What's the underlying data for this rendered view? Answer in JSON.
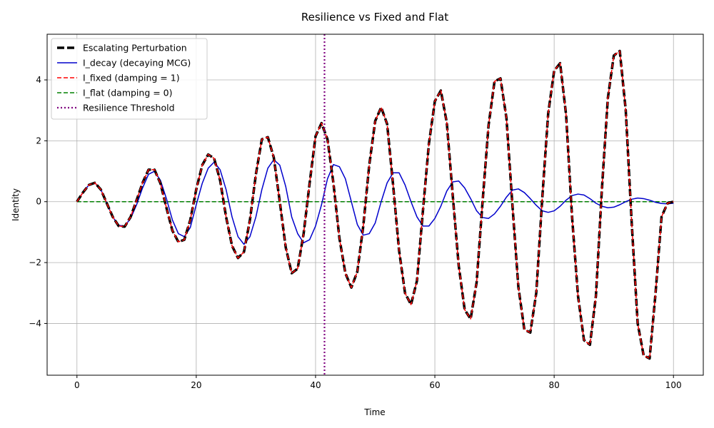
{
  "chart_data": {
    "type": "line",
    "title": "Resilience vs Fixed and Flat",
    "xlabel": "Time",
    "ylabel": "Identity",
    "xlim": [
      -5,
      105
    ],
    "ylim": [
      -5.7,
      5.5
    ],
    "xticks": [
      0,
      20,
      40,
      60,
      80,
      100
    ],
    "yticks": [
      -4,
      -2,
      0,
      2,
      4
    ],
    "grid": true,
    "legend_position": "top-left",
    "series": [
      {
        "name": "Escalating Perturbation",
        "color": "#000000",
        "style": "dashed",
        "x": [
          0,
          1,
          2,
          3,
          4,
          5,
          6,
          7,
          8,
          9,
          10,
          11,
          12,
          13,
          14,
          15,
          16,
          17,
          18,
          19,
          20,
          21,
          22,
          23,
          24,
          25,
          26,
          27,
          28,
          29,
          30,
          31,
          32,
          33,
          34,
          35,
          36,
          37,
          38,
          39,
          40,
          41,
          42,
          43,
          44,
          45,
          46,
          47,
          48,
          49,
          50,
          51,
          52,
          53,
          54,
          55,
          56,
          57,
          58,
          59,
          60,
          61,
          62,
          63,
          64,
          65,
          66,
          67,
          68,
          69,
          70,
          71,
          72,
          73,
          74,
          75,
          76,
          77,
          78,
          79,
          80,
          81,
          82,
          83,
          84,
          85,
          86,
          87,
          88,
          89,
          90,
          91,
          92,
          93,
          94,
          95,
          96,
          97,
          98,
          99,
          100
        ],
        "y": [
          0.0,
          0.3,
          0.55,
          0.62,
          0.4,
          -0.05,
          -0.5,
          -0.8,
          -0.82,
          -0.5,
          0.05,
          0.62,
          1.05,
          1.05,
          0.6,
          -0.2,
          -0.95,
          -1.32,
          -1.25,
          -0.6,
          0.4,
          1.2,
          1.55,
          1.42,
          0.7,
          -0.5,
          -1.45,
          -1.85,
          -1.65,
          -0.6,
          0.9,
          2.05,
          2.12,
          1.45,
          0.0,
          -1.5,
          -2.35,
          -2.2,
          -1.05,
          0.6,
          2.15,
          2.58,
          2.05,
          0.6,
          -1.2,
          -2.35,
          -2.82,
          -2.3,
          -0.8,
          1.2,
          2.65,
          3.1,
          2.55,
          0.55,
          -1.6,
          -3.0,
          -3.38,
          -2.6,
          -0.3,
          1.9,
          3.3,
          3.65,
          2.6,
          0.2,
          -2.1,
          -3.55,
          -3.85,
          -2.65,
          0.0,
          2.5,
          3.95,
          4.05,
          2.75,
          -0.1,
          -2.8,
          -4.2,
          -4.3,
          -3.0,
          0.1,
          2.9,
          4.3,
          4.55,
          2.85,
          -0.5,
          -3.1,
          -4.55,
          -4.7,
          -3.1,
          0.4,
          3.4,
          4.8,
          4.95,
          3.0,
          -0.7,
          -4.0,
          -5.05,
          -5.15,
          -3.0,
          -0.5,
          -0.05,
          0.0
        ]
      },
      {
        "name": "I_decay (decaying MCG)",
        "color": "#0000cc",
        "style": "solid",
        "x": [
          0,
          1,
          2,
          3,
          4,
          5,
          6,
          7,
          8,
          9,
          10,
          11,
          12,
          13,
          14,
          15,
          16,
          17,
          18,
          19,
          20,
          21,
          22,
          23,
          24,
          25,
          26,
          27,
          28,
          29,
          30,
          31,
          32,
          33,
          34,
          35,
          36,
          37,
          38,
          39,
          40,
          41,
          42,
          43,
          44,
          45,
          46,
          47,
          48,
          49,
          50,
          51,
          52,
          53,
          54,
          55,
          56,
          57,
          58,
          59,
          60,
          61,
          62,
          63,
          64,
          65,
          66,
          67,
          68,
          69,
          70,
          71,
          72,
          73,
          74,
          75,
          76,
          77,
          78,
          79,
          80,
          81,
          82,
          83,
          84,
          85,
          86,
          87,
          88,
          89,
          90,
          91,
          92,
          93,
          94,
          95,
          96,
          97,
          98,
          99,
          100
        ],
        "y": [
          0.0,
          0.3,
          0.55,
          0.62,
          0.4,
          -0.05,
          -0.5,
          -0.78,
          -0.8,
          -0.55,
          -0.1,
          0.45,
          0.9,
          1.0,
          0.7,
          0.1,
          -0.6,
          -1.05,
          -1.15,
          -0.85,
          -0.1,
          0.6,
          1.1,
          1.3,
          1.05,
          0.4,
          -0.5,
          -1.15,
          -1.4,
          -1.15,
          -0.5,
          0.4,
          1.1,
          1.38,
          1.2,
          0.5,
          -0.5,
          -1.05,
          -1.35,
          -1.25,
          -0.8,
          -0.1,
          0.75,
          1.22,
          1.15,
          0.75,
          0.0,
          -0.75,
          -1.1,
          -1.05,
          -0.7,
          0.0,
          0.62,
          0.95,
          0.95,
          0.55,
          0.0,
          -0.5,
          -0.8,
          -0.8,
          -0.55,
          -0.15,
          0.35,
          0.65,
          0.68,
          0.45,
          0.1,
          -0.3,
          -0.52,
          -0.55,
          -0.4,
          -0.15,
          0.15,
          0.38,
          0.42,
          0.3,
          0.1,
          -0.12,
          -0.3,
          -0.35,
          -0.3,
          -0.15,
          0.05,
          0.2,
          0.25,
          0.22,
          0.1,
          -0.05,
          -0.15,
          -0.2,
          -0.18,
          -0.1,
          0.0,
          0.08,
          0.12,
          0.1,
          0.05,
          -0.02,
          -0.06,
          -0.07,
          -0.05
        ]
      },
      {
        "name": "I_fixed (damping = 1)",
        "color": "#ff0000",
        "style": "dashed",
        "x": [
          0,
          1,
          2,
          3,
          4,
          5,
          6,
          7,
          8,
          9,
          10,
          11,
          12,
          13,
          14,
          15,
          16,
          17,
          18,
          19,
          20,
          21,
          22,
          23,
          24,
          25,
          26,
          27,
          28,
          29,
          30,
          31,
          32,
          33,
          34,
          35,
          36,
          37,
          38,
          39,
          40,
          41,
          42,
          43,
          44,
          45,
          46,
          47,
          48,
          49,
          50,
          51,
          52,
          53,
          54,
          55,
          56,
          57,
          58,
          59,
          60,
          61,
          62,
          63,
          64,
          65,
          66,
          67,
          68,
          69,
          70,
          71,
          72,
          73,
          74,
          75,
          76,
          77,
          78,
          79,
          80,
          81,
          82,
          83,
          84,
          85,
          86,
          87,
          88,
          89,
          90,
          91,
          92,
          93,
          94,
          95,
          96,
          97,
          98,
          99,
          100
        ],
        "y": [
          0.0,
          0.3,
          0.55,
          0.62,
          0.4,
          -0.05,
          -0.5,
          -0.8,
          -0.82,
          -0.5,
          0.05,
          0.62,
          1.05,
          1.05,
          0.6,
          -0.2,
          -0.95,
          -1.32,
          -1.25,
          -0.6,
          0.4,
          1.2,
          1.55,
          1.42,
          0.7,
          -0.5,
          -1.45,
          -1.85,
          -1.65,
          -0.6,
          0.9,
          2.05,
          2.12,
          1.45,
          0.0,
          -1.5,
          -2.35,
          -2.2,
          -1.05,
          0.6,
          2.15,
          2.58,
          2.05,
          0.6,
          -1.2,
          -2.35,
          -2.82,
          -2.3,
          -0.8,
          1.2,
          2.65,
          3.1,
          2.55,
          0.55,
          -1.6,
          -3.0,
          -3.38,
          -2.6,
          -0.3,
          1.9,
          3.3,
          3.65,
          2.6,
          0.2,
          -2.1,
          -3.55,
          -3.85,
          -2.65,
          0.0,
          2.5,
          3.95,
          4.05,
          2.75,
          -0.1,
          -2.8,
          -4.2,
          -4.3,
          -3.0,
          0.1,
          2.9,
          4.3,
          4.55,
          2.85,
          -0.5,
          -3.1,
          -4.55,
          -4.7,
          -3.1,
          0.4,
          3.4,
          4.8,
          4.95,
          3.0,
          -0.7,
          -4.0,
          -5.05,
          -5.15,
          -3.0,
          -0.5,
          -0.05,
          0.0
        ]
      },
      {
        "name": "I_flat (damping = 0)",
        "color": "#008000",
        "style": "dashed",
        "x": [
          0,
          100
        ],
        "y": [
          0,
          0
        ]
      }
    ],
    "vlines": [
      {
        "name": "Resilience Threshold",
        "x": 41.5,
        "color": "#800080",
        "style": "dotted"
      }
    ]
  }
}
